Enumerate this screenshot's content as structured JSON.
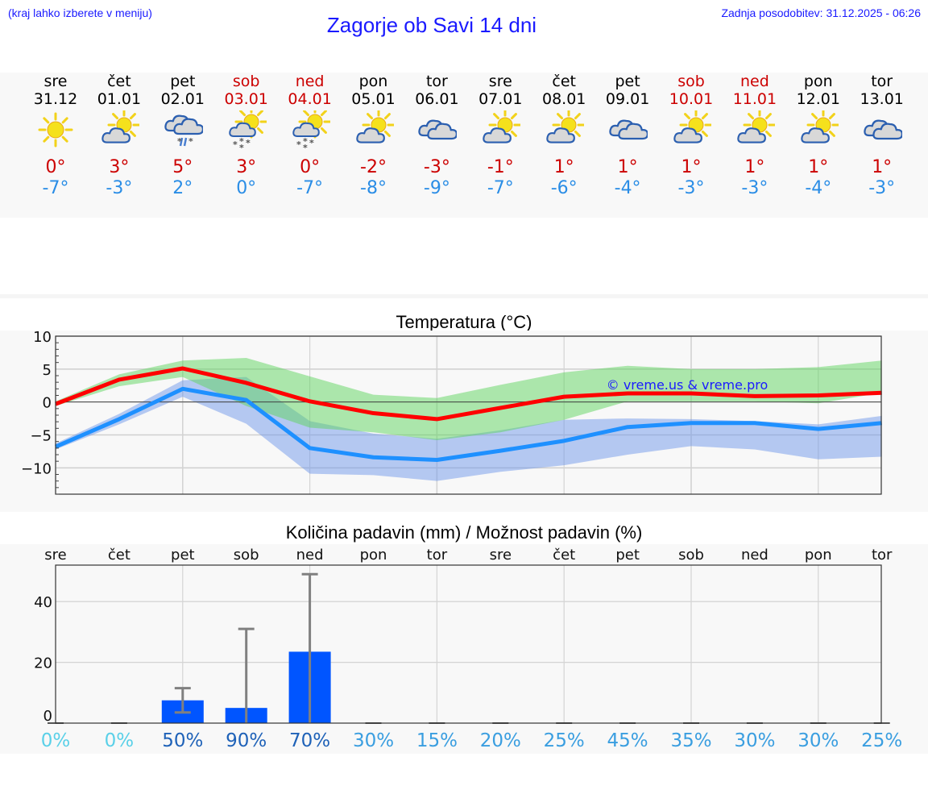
{
  "header": {
    "hint": "(kraj lahko izberete v meniju)",
    "title": "Zagorje ob Savi 14 dni",
    "updated": "Zadnja posodobitev: 31.12.2025 - 06:26"
  },
  "colors": {
    "link_blue": "#1a1aff",
    "max_temp": "#cc0000",
    "min_temp": "#2a8de6",
    "max_line": "#ff0000",
    "min_line": "#1e90ff",
    "max_band": "#90e090",
    "min_band": "#8fb3f0",
    "bar": "#0055ff",
    "error_bar": "#808080"
  },
  "days": [
    {
      "name": "sre",
      "date": "31.12",
      "weekend": false,
      "icon": "sunny-icon",
      "max": "0°",
      "min": "-7°"
    },
    {
      "name": "čet",
      "date": "01.01",
      "weekend": false,
      "icon": "partly-cloudy-icon",
      "max": "3°",
      "min": "-3°"
    },
    {
      "name": "pet",
      "date": "02.01",
      "weekend": false,
      "icon": "cloudy-sleet-icon",
      "max": "5°",
      "min": "2°"
    },
    {
      "name": "sob",
      "date": "03.01",
      "weekend": true,
      "icon": "partly-cloudy-snow-icon",
      "max": "3°",
      "min": "0°"
    },
    {
      "name": "ned",
      "date": "04.01",
      "weekend": true,
      "icon": "partly-cloudy-snow-icon",
      "max": "0°",
      "min": "-7°"
    },
    {
      "name": "pon",
      "date": "05.01",
      "weekend": false,
      "icon": "partly-cloudy-icon",
      "max": "-2°",
      "min": "-8°"
    },
    {
      "name": "tor",
      "date": "06.01",
      "weekend": false,
      "icon": "cloudy-icon",
      "max": "-3°",
      "min": "-9°"
    },
    {
      "name": "sre",
      "date": "07.01",
      "weekend": false,
      "icon": "partly-cloudy-icon",
      "max": "-1°",
      "min": "-7°"
    },
    {
      "name": "čet",
      "date": "08.01",
      "weekend": false,
      "icon": "partly-cloudy-icon",
      "max": "1°",
      "min": "-6°"
    },
    {
      "name": "pet",
      "date": "09.01",
      "weekend": false,
      "icon": "cloudy-icon",
      "max": "1°",
      "min": "-4°"
    },
    {
      "name": "sob",
      "date": "10.01",
      "weekend": true,
      "icon": "partly-cloudy-icon",
      "max": "1°",
      "min": "-3°"
    },
    {
      "name": "ned",
      "date": "11.01",
      "weekend": true,
      "icon": "partly-cloudy-icon",
      "max": "1°",
      "min": "-3°"
    },
    {
      "name": "pon",
      "date": "12.01",
      "weekend": false,
      "icon": "partly-cloudy-icon",
      "max": "1°",
      "min": "-4°"
    },
    {
      "name": "tor",
      "date": "13.01",
      "weekend": false,
      "icon": "cloudy-icon",
      "max": "1°",
      "min": "-3°"
    }
  ],
  "temp_chart": {
    "title": "Temperatura (°C)",
    "watermark": "© vreme.us & vreme.pro"
  },
  "precip_chart": {
    "title": "Količina padavin (mm) / Možnost padavin (%)"
  },
  "chart_data": [
    {
      "type": "line",
      "title": "Temperatura (°C)",
      "xlabel": "",
      "ylabel": "",
      "ylim": [
        -14,
        10
      ],
      "yticks": [
        -10,
        -5,
        0,
        5,
        10
      ],
      "grid": true,
      "x": [
        "31.12",
        "01.01",
        "02.01",
        "03.01",
        "04.01",
        "05.01",
        "06.01",
        "07.01",
        "08.01",
        "09.01",
        "10.01",
        "11.01",
        "12.01",
        "13.01"
      ],
      "series": [
        {
          "name": "max",
          "color": "#ff0000",
          "values": [
            -0.3,
            3.4,
            5.1,
            2.9,
            0.1,
            -1.7,
            -2.6,
            -0.9,
            0.8,
            1.3,
            1.3,
            0.9,
            1.0,
            1.4
          ]
        },
        {
          "name": "max_band_upper",
          "values": [
            0.1,
            4.2,
            6.3,
            6.7,
            3.9,
            1.1,
            0.6,
            2.6,
            4.5,
            5.5,
            5.0,
            5.0,
            5.3,
            6.3
          ]
        },
        {
          "name": "max_band_lower",
          "values": [
            -0.6,
            2.4,
            3.8,
            -0.6,
            -3.9,
            -4.6,
            -5.8,
            -4.6,
            -2.7,
            0.1,
            0.1,
            0.1,
            -0.2,
            1.4
          ]
        },
        {
          "name": "min",
          "color": "#1e90ff",
          "values": [
            -6.8,
            -2.6,
            2.0,
            0.3,
            -7.0,
            -8.4,
            -8.8,
            -7.4,
            -5.9,
            -3.8,
            -3.2,
            -3.2,
            -4.1,
            -3.2
          ]
        },
        {
          "name": "min_band_upper",
          "values": [
            -6.3,
            -1.8,
            3.3,
            3.8,
            -2.9,
            -4.8,
            -5.6,
            -4.3,
            -2.7,
            -2.5,
            -2.6,
            -2.9,
            -3.4,
            -2.1
          ]
        },
        {
          "name": "min_band_lower",
          "values": [
            -7.2,
            -3.4,
            0.8,
            -3.3,
            -10.9,
            -11.1,
            -12.0,
            -10.6,
            -9.6,
            -8.0,
            -6.7,
            -7.2,
            -8.7,
            -8.3
          ]
        }
      ]
    },
    {
      "type": "bar",
      "title": "Količina padavin (mm) / Možnost padavin (%)",
      "xlabel": "",
      "ylabel": "",
      "ylim": [
        -3,
        52
      ],
      "yticks": [
        0,
        20,
        40
      ],
      "grid": true,
      "categories": [
        "sre",
        "čet",
        "pet",
        "sob",
        "ned",
        "pon",
        "tor",
        "sre",
        "čet",
        "pet",
        "sob",
        "ned",
        "pon",
        "tor"
      ],
      "values": [
        0,
        0,
        7.5,
        5,
        23.5,
        0,
        0,
        0,
        0,
        0,
        0,
        0,
        0,
        0
      ],
      "error_low": [
        0,
        0,
        3.5,
        0,
        0,
        0,
        0,
        0,
        0,
        0,
        0,
        0,
        0,
        0
      ],
      "error_high": [
        0,
        0,
        11.5,
        31,
        49,
        0,
        0,
        0,
        0,
        0,
        0,
        0,
        0,
        0
      ],
      "probability": [
        "0%",
        "0%",
        "50%",
        "90%",
        "70%",
        "30%",
        "15%",
        "20%",
        "25%",
        "45%",
        "35%",
        "30%",
        "30%",
        "25%"
      ],
      "probability_colors": [
        "#5ad0e8",
        "#5ad0e8",
        "#1f62b8",
        "#1f62b8",
        "#1f62b8",
        "#3a9ee0",
        "#3a9ee0",
        "#3a9ee0",
        "#3a9ee0",
        "#3a9ee0",
        "#3a9ee0",
        "#3a9ee0",
        "#3a9ee0",
        "#3a9ee0"
      ]
    }
  ]
}
